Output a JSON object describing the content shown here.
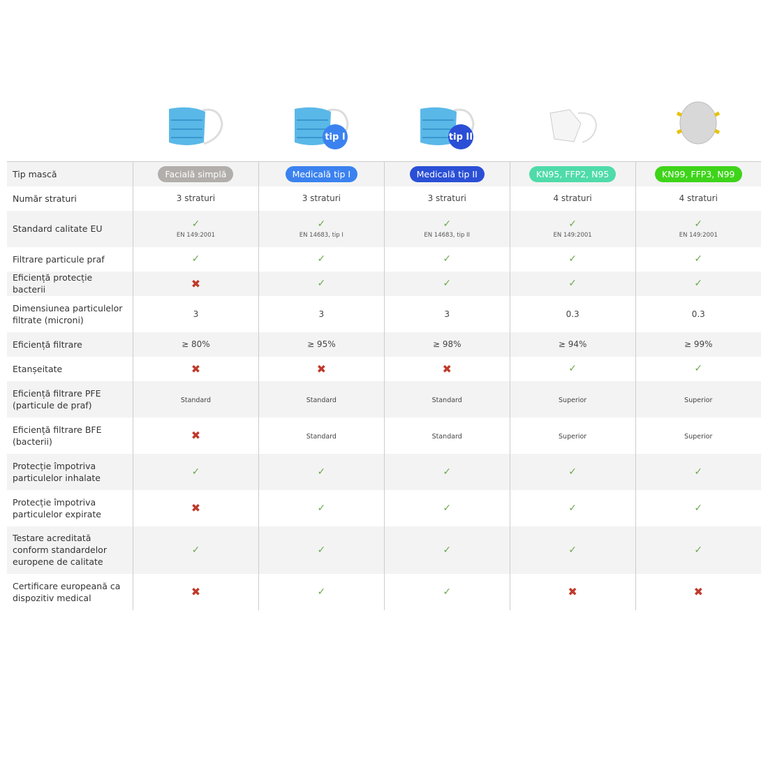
{
  "columns": [
    {
      "label": "Facială simplă",
      "color": "#b1aeab",
      "image": "surgical-mask",
      "badge": ""
    },
    {
      "label": "Medicală tip I",
      "color": "#3b82f0",
      "image": "surgical-mask",
      "badge": "tip I"
    },
    {
      "label": "Medicală tip II",
      "color": "#2a4fd6",
      "image": "surgical-mask",
      "badge": "tip II"
    },
    {
      "label": "KN95, FFP2, N95",
      "color": "#4fdbaa",
      "image": "kn95-mask",
      "badge": ""
    },
    {
      "label": "KN99, FFP3, N99",
      "color": "#3ed41a",
      "image": "respirator-mask",
      "badge": ""
    }
  ],
  "header_label": "Tip mască",
  "rows": [
    {
      "label": "Număr straturi",
      "cells": [
        "3 straturi",
        "3 straturi",
        "3 straturi",
        "4 straturi",
        "4 straturi"
      ],
      "h": 35
    },
    {
      "label": "Standard calitate EU",
      "cells": [
        "✓|EN 149:2001",
        "✓|EN 14683, tip I",
        "✓|EN 14683, tip II",
        "✓|EN 149:2001",
        "✓|EN 149:2001"
      ],
      "h": 52
    },
    {
      "label": "Filtrare particule praf",
      "cells": [
        "✓",
        "✓",
        "✓",
        "✓",
        "✓"
      ],
      "h": 35
    },
    {
      "label": "Eficiență protecție bacterii",
      "cells": [
        "✗",
        "✓",
        "✓",
        "✓",
        "✓"
      ],
      "h": 35
    },
    {
      "label": "Dimensiunea particulelor filtrate (microni)",
      "cells": [
        "3",
        "3",
        "3",
        "0.3",
        "0.3"
      ],
      "h": 52
    },
    {
      "label": "Eficiență filtrare",
      "cells": [
        "≥ 80%",
        "≥ 95%",
        "≥ 98%",
        "≥ 94%",
        "≥ 99%"
      ],
      "h": 35
    },
    {
      "label": "Etanșeitate",
      "cells": [
        "✗",
        "✗",
        "✗",
        "✓",
        "✓"
      ],
      "h": 35
    },
    {
      "label": "Eficiență filtrare PFE (particule de praf)",
      "cells": [
        "Standard",
        "Standard",
        "Standard",
        "Superior",
        "Superior"
      ],
      "h": 52,
      "small": true
    },
    {
      "label": "Eficiență filtrare BFE (bacterii)",
      "cells": [
        "✗",
        "Standard",
        "Standard",
        "Superior",
        "Superior"
      ],
      "h": 52,
      "small": true
    },
    {
      "label": "Protecție împotriva particulelor inhalate",
      "cells": [
        "✓",
        "✓",
        "✓",
        "✓",
        "✓"
      ],
      "h": 52
    },
    {
      "label": "Protecție împotriva particulelor expirate",
      "cells": [
        "✗",
        "✓",
        "✓",
        "✓",
        "✓"
      ],
      "h": 52
    },
    {
      "label": "Testare acreditată conform standardelor europene de calitate",
      "cells": [
        "✓",
        "✓",
        "✓",
        "✓",
        "✓"
      ],
      "h": 68
    },
    {
      "label": "Certificare europeană ca dispozitiv medical",
      "cells": [
        "✗",
        "✓",
        "✓",
        "✗",
        "✗"
      ],
      "h": 52
    }
  ]
}
